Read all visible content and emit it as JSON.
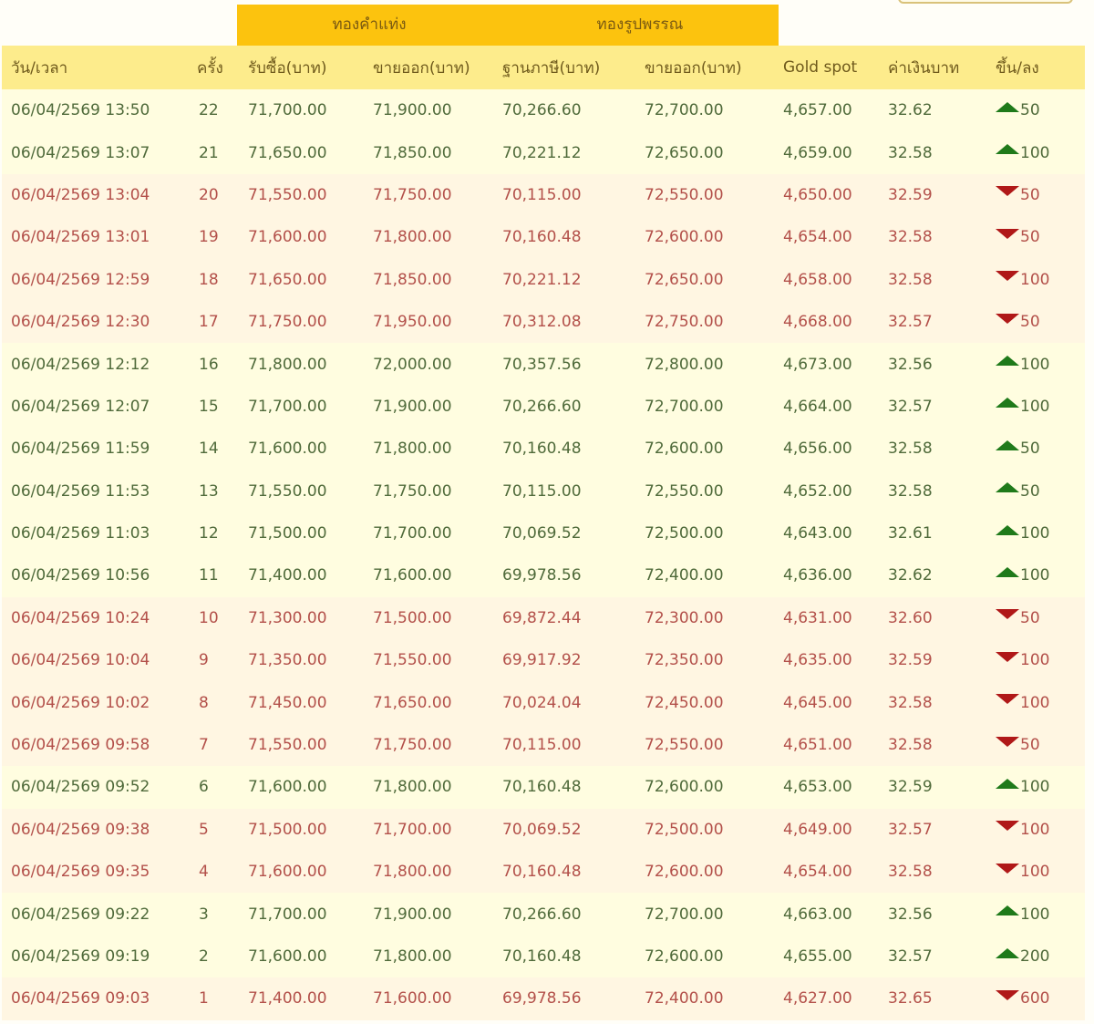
{
  "colors": {
    "group_header_bg": "#fcc30e",
    "column_header_bg": "#fdec8c",
    "up_row_bg": "#fffde0",
    "down_row_bg": "#fff6e2",
    "up_text": "#4f6a3a",
    "down_text": "#b3504a",
    "up_arrow": "#1f7a1a",
    "down_arrow": "#b01818"
  },
  "group_headers": {
    "gold_bar": "ทองคำแท่ง",
    "gold_ornament": "ทองรูปพรรณ"
  },
  "columns": {
    "datetime": "วัน/เวลา",
    "round": "ครั้ง",
    "bar_buy": "รับซื้อ(บาท)",
    "bar_sell": "ขายออก(บาท)",
    "ornament_tax_base": "ฐานภาษี(บาท)",
    "ornament_sell": "ขายออก(บาท)",
    "gold_spot": "Gold spot",
    "thb_rate": "ค่าเงินบาท",
    "change": "ขึ้น/ลง"
  },
  "rows": [
    {
      "datetime": "06/04/2569 13:50",
      "round": "22",
      "bar_buy": "71,700.00",
      "bar_sell": "71,900.00",
      "tax_base": "70,266.60",
      "orn_sell": "72,700.00",
      "spot": "4,657.00",
      "fx": "32.62",
      "dir": "up",
      "change": "50"
    },
    {
      "datetime": "06/04/2569 13:07",
      "round": "21",
      "bar_buy": "71,650.00",
      "bar_sell": "71,850.00",
      "tax_base": "70,221.12",
      "orn_sell": "72,650.00",
      "spot": "4,659.00",
      "fx": "32.58",
      "dir": "up",
      "change": "100"
    },
    {
      "datetime": "06/04/2569 13:04",
      "round": "20",
      "bar_buy": "71,550.00",
      "bar_sell": "71,750.00",
      "tax_base": "70,115.00",
      "orn_sell": "72,550.00",
      "spot": "4,650.00",
      "fx": "32.59",
      "dir": "down",
      "change": "50"
    },
    {
      "datetime": "06/04/2569 13:01",
      "round": "19",
      "bar_buy": "71,600.00",
      "bar_sell": "71,800.00",
      "tax_base": "70,160.48",
      "orn_sell": "72,600.00",
      "spot": "4,654.00",
      "fx": "32.58",
      "dir": "down",
      "change": "50"
    },
    {
      "datetime": "06/04/2569 12:59",
      "round": "18",
      "bar_buy": "71,650.00",
      "bar_sell": "71,850.00",
      "tax_base": "70,221.12",
      "orn_sell": "72,650.00",
      "spot": "4,658.00",
      "fx": "32.58",
      "dir": "down",
      "change": "100"
    },
    {
      "datetime": "06/04/2569 12:30",
      "round": "17",
      "bar_buy": "71,750.00",
      "bar_sell": "71,950.00",
      "tax_base": "70,312.08",
      "orn_sell": "72,750.00",
      "spot": "4,668.00",
      "fx": "32.57",
      "dir": "down",
      "change": "50"
    },
    {
      "datetime": "06/04/2569 12:12",
      "round": "16",
      "bar_buy": "71,800.00",
      "bar_sell": "72,000.00",
      "tax_base": "70,357.56",
      "orn_sell": "72,800.00",
      "spot": "4,673.00",
      "fx": "32.56",
      "dir": "up",
      "change": "100"
    },
    {
      "datetime": "06/04/2569 12:07",
      "round": "15",
      "bar_buy": "71,700.00",
      "bar_sell": "71,900.00",
      "tax_base": "70,266.60",
      "orn_sell": "72,700.00",
      "spot": "4,664.00",
      "fx": "32.57",
      "dir": "up",
      "change": "100"
    },
    {
      "datetime": "06/04/2569 11:59",
      "round": "14",
      "bar_buy": "71,600.00",
      "bar_sell": "71,800.00",
      "tax_base": "70,160.48",
      "orn_sell": "72,600.00",
      "spot": "4,656.00",
      "fx": "32.58",
      "dir": "up",
      "change": "50"
    },
    {
      "datetime": "06/04/2569 11:53",
      "round": "13",
      "bar_buy": "71,550.00",
      "bar_sell": "71,750.00",
      "tax_base": "70,115.00",
      "orn_sell": "72,550.00",
      "spot": "4,652.00",
      "fx": "32.58",
      "dir": "up",
      "change": "50"
    },
    {
      "datetime": "06/04/2569 11:03",
      "round": "12",
      "bar_buy": "71,500.00",
      "bar_sell": "71,700.00",
      "tax_base": "70,069.52",
      "orn_sell": "72,500.00",
      "spot": "4,643.00",
      "fx": "32.61",
      "dir": "up",
      "change": "100"
    },
    {
      "datetime": "06/04/2569 10:56",
      "round": "11",
      "bar_buy": "71,400.00",
      "bar_sell": "71,600.00",
      "tax_base": "69,978.56",
      "orn_sell": "72,400.00",
      "spot": "4,636.00",
      "fx": "32.62",
      "dir": "up",
      "change": "100"
    },
    {
      "datetime": "06/04/2569 10:24",
      "round": "10",
      "bar_buy": "71,300.00",
      "bar_sell": "71,500.00",
      "tax_base": "69,872.44",
      "orn_sell": "72,300.00",
      "spot": "4,631.00",
      "fx": "32.60",
      "dir": "down",
      "change": "50"
    },
    {
      "datetime": "06/04/2569 10:04",
      "round": "9",
      "bar_buy": "71,350.00",
      "bar_sell": "71,550.00",
      "tax_base": "69,917.92",
      "orn_sell": "72,350.00",
      "spot": "4,635.00",
      "fx": "32.59",
      "dir": "down",
      "change": "100"
    },
    {
      "datetime": "06/04/2569 10:02",
      "round": "8",
      "bar_buy": "71,450.00",
      "bar_sell": "71,650.00",
      "tax_base": "70,024.04",
      "orn_sell": "72,450.00",
      "spot": "4,645.00",
      "fx": "32.58",
      "dir": "down",
      "change": "100"
    },
    {
      "datetime": "06/04/2569 09:58",
      "round": "7",
      "bar_buy": "71,550.00",
      "bar_sell": "71,750.00",
      "tax_base": "70,115.00",
      "orn_sell": "72,550.00",
      "spot": "4,651.00",
      "fx": "32.58",
      "dir": "down",
      "change": "50"
    },
    {
      "datetime": "06/04/2569 09:52",
      "round": "6",
      "bar_buy": "71,600.00",
      "bar_sell": "71,800.00",
      "tax_base": "70,160.48",
      "orn_sell": "72,600.00",
      "spot": "4,653.00",
      "fx": "32.59",
      "dir": "up",
      "change": "100"
    },
    {
      "datetime": "06/04/2569 09:38",
      "round": "5",
      "bar_buy": "71,500.00",
      "bar_sell": "71,700.00",
      "tax_base": "70,069.52",
      "orn_sell": "72,500.00",
      "spot": "4,649.00",
      "fx": "32.57",
      "dir": "down",
      "change": "100"
    },
    {
      "datetime": "06/04/2569 09:35",
      "round": "4",
      "bar_buy": "71,600.00",
      "bar_sell": "71,800.00",
      "tax_base": "70,160.48",
      "orn_sell": "72,600.00",
      "spot": "4,654.00",
      "fx": "32.58",
      "dir": "down",
      "change": "100"
    },
    {
      "datetime": "06/04/2569 09:22",
      "round": "3",
      "bar_buy": "71,700.00",
      "bar_sell": "71,900.00",
      "tax_base": "70,266.60",
      "orn_sell": "72,700.00",
      "spot": "4,663.00",
      "fx": "32.56",
      "dir": "up",
      "change": "100"
    },
    {
      "datetime": "06/04/2569 09:19",
      "round": "2",
      "bar_buy": "71,600.00",
      "bar_sell": "71,800.00",
      "tax_base": "70,160.48",
      "orn_sell": "72,600.00",
      "spot": "4,655.00",
      "fx": "32.57",
      "dir": "up",
      "change": "200"
    },
    {
      "datetime": "06/04/2569 09:03",
      "round": "1",
      "bar_buy": "71,400.00",
      "bar_sell": "71,600.00",
      "tax_base": "69,978.56",
      "orn_sell": "72,400.00",
      "spot": "4,627.00",
      "fx": "32.65",
      "dir": "down",
      "change": "600"
    }
  ]
}
